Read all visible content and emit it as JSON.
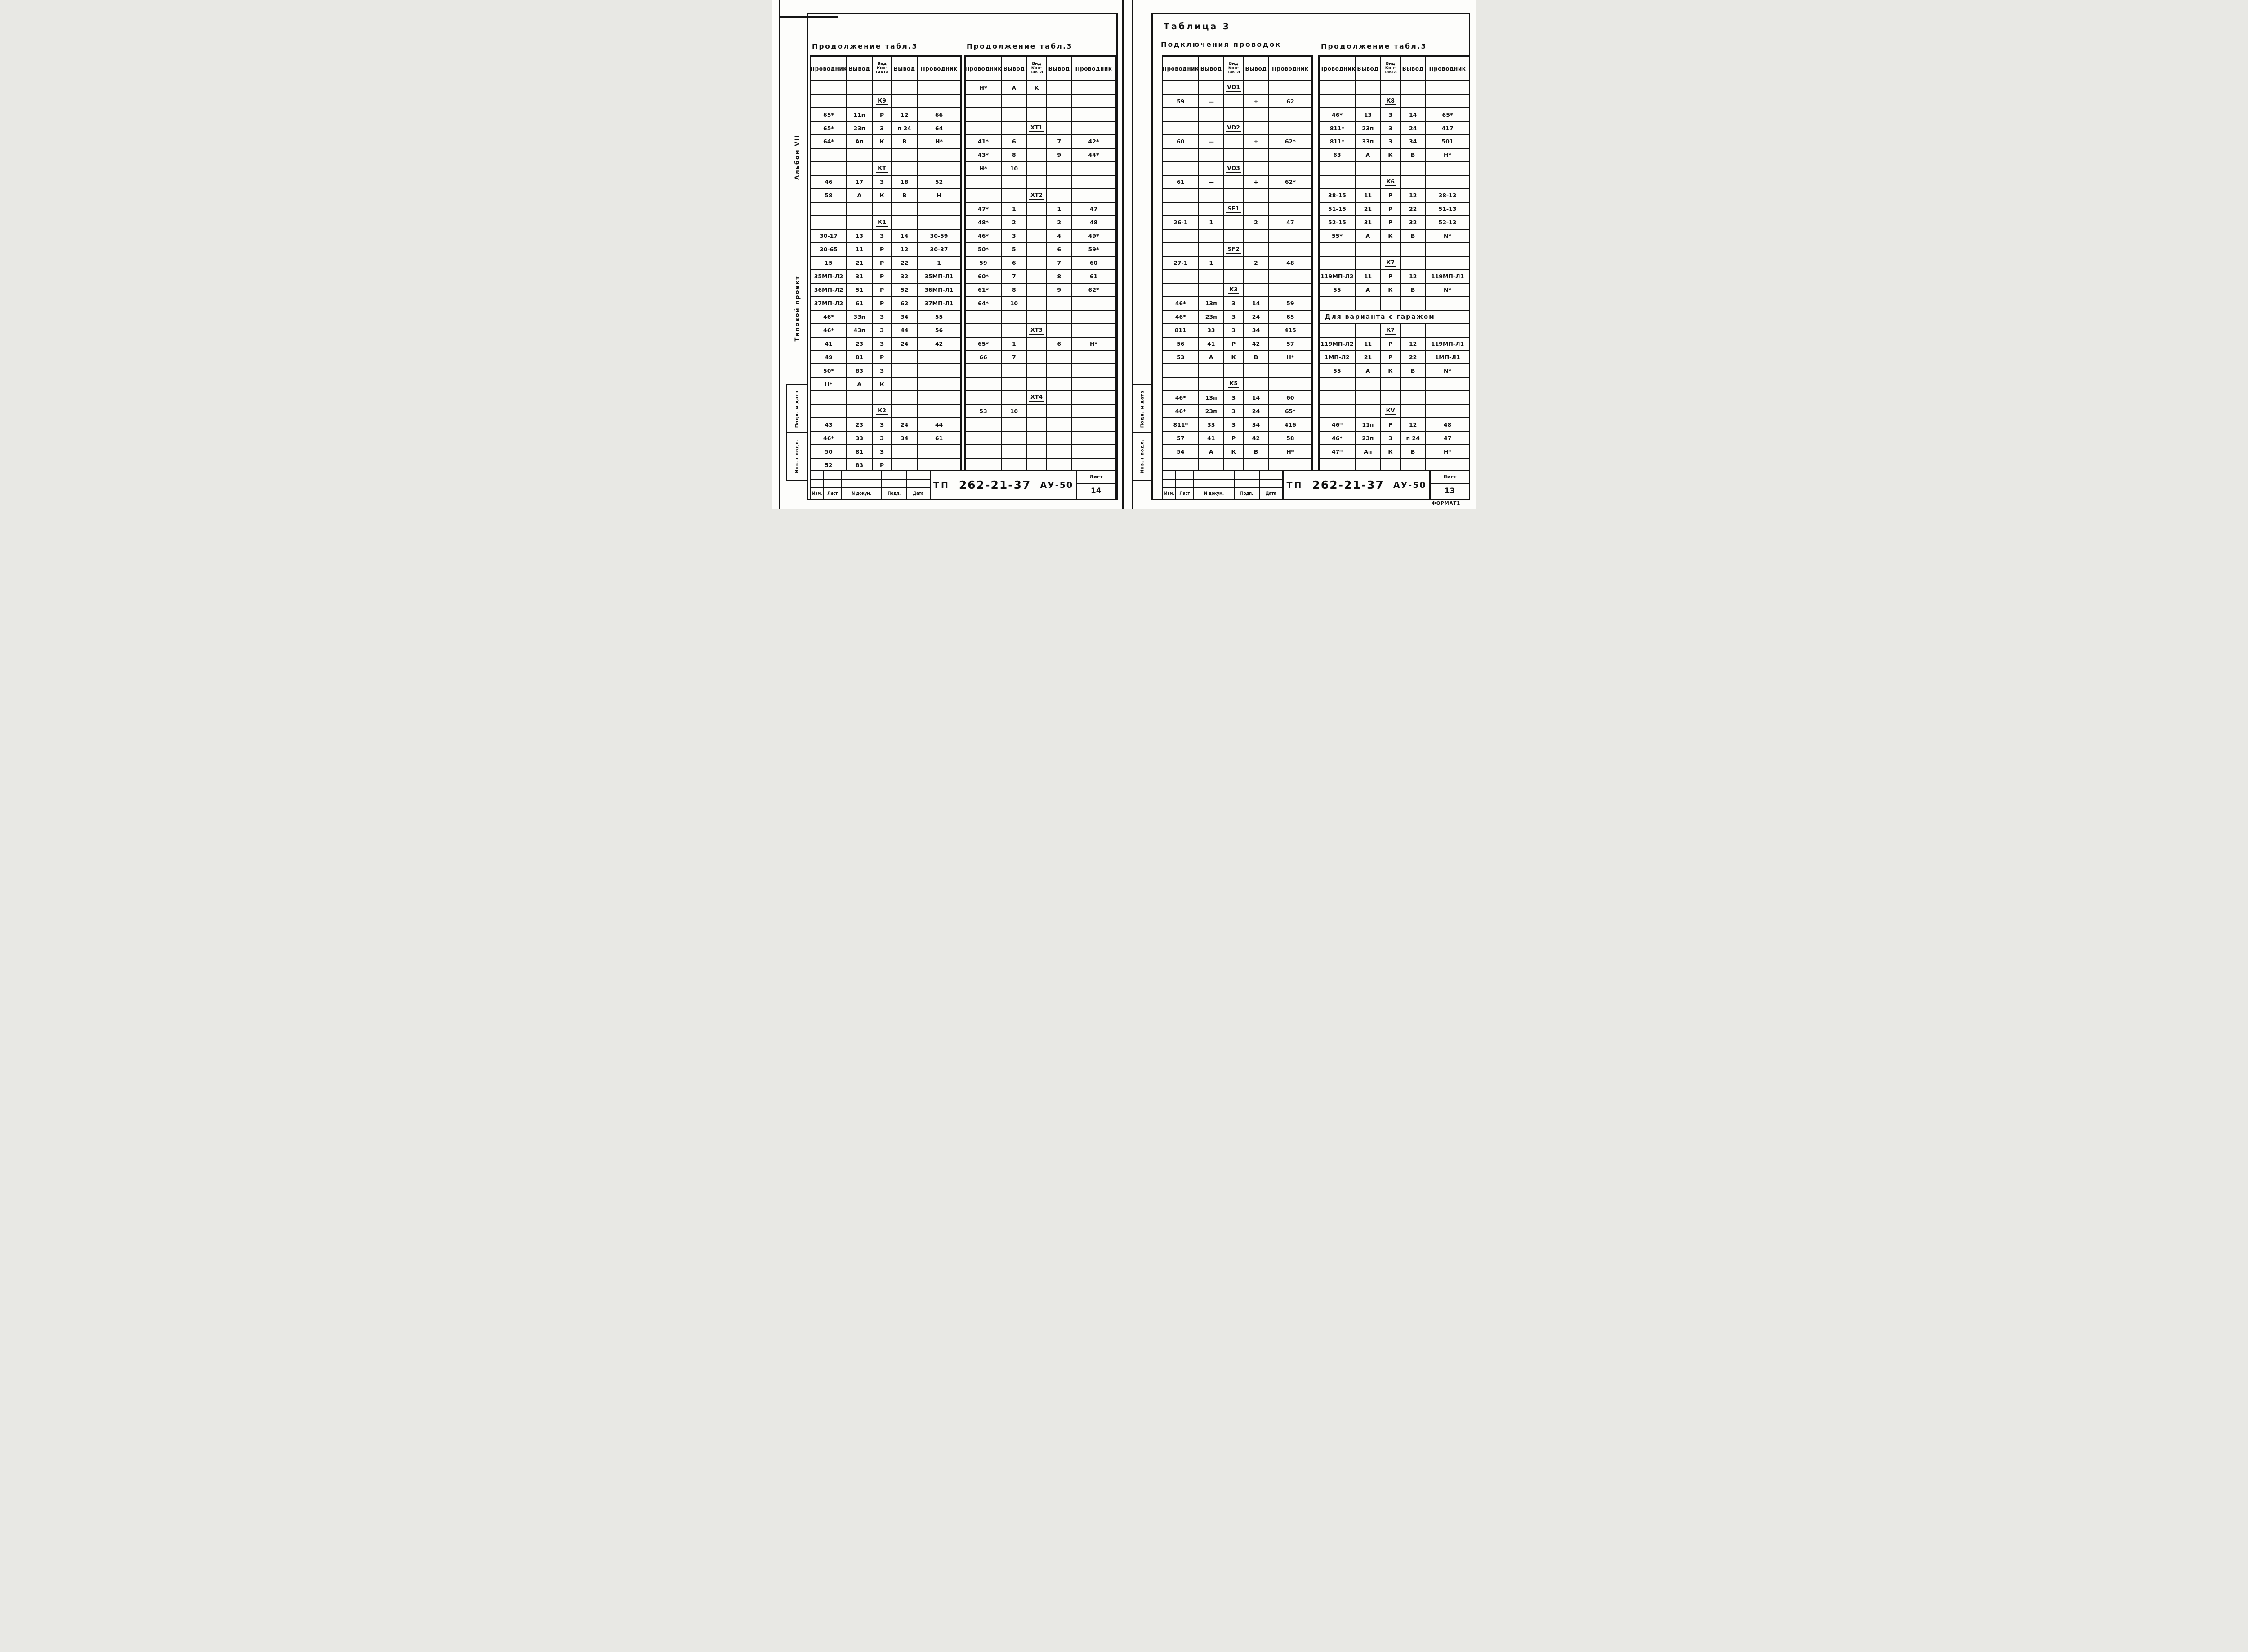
{
  "document": {
    "doc_prefix": "ТП",
    "doc_number": "262-21-37",
    "doc_code": "АУ-50",
    "sheet_word": "Лист",
    "format_label": "ФОРМАТ1"
  },
  "columns": [
    "Проводник",
    "Вывод",
    "Вид\nКон-\nтакта",
    "Вывод",
    "Проводник"
  ],
  "revision_labels": [
    "Изм.",
    "Лист",
    "N докум.",
    "Подп.",
    "Дата"
  ],
  "left_page": {
    "sheet_number": "14",
    "margin": {
      "album": "Альбом VII",
      "project": "Типовой проект",
      "podp": "Подп. и дата",
      "inv": "Инв.н подл."
    },
    "table1": {
      "title": "Продолжение табл.3",
      "rows": [
        {
          "t": "empty"
        },
        {
          "t": "section",
          "label": "К9"
        },
        {
          "t": "data",
          "c": [
            "65*",
            "11п",
            "Р",
            "12",
            "66"
          ]
        },
        {
          "t": "data",
          "c": [
            "65*",
            "23п",
            "З",
            "п 24",
            "64"
          ]
        },
        {
          "t": "data",
          "c": [
            "64*",
            "Ап",
            "К",
            "В",
            "Н*"
          ]
        },
        {
          "t": "empty"
        },
        {
          "t": "section",
          "label": "КТ"
        },
        {
          "t": "data",
          "c": [
            "46",
            "17",
            "З",
            "18",
            "52"
          ]
        },
        {
          "t": "data",
          "c": [
            "58",
            "А",
            "К",
            "В",
            "Н"
          ]
        },
        {
          "t": "empty"
        },
        {
          "t": "section",
          "label": "К1"
        },
        {
          "t": "data",
          "c": [
            "30-17",
            "13",
            "З",
            "14",
            "30-59"
          ]
        },
        {
          "t": "data",
          "c": [
            "30-65",
            "11",
            "Р",
            "12",
            "30-37"
          ]
        },
        {
          "t": "data",
          "c": [
            "15",
            "21",
            "Р",
            "22",
            "1"
          ]
        },
        {
          "t": "data",
          "c": [
            "35МП-Л2",
            "31",
            "Р",
            "32",
            "35МП-Л1"
          ]
        },
        {
          "t": "data",
          "c": [
            "36МП-Л2",
            "51",
            "Р",
            "52",
            "36МП-Л1"
          ]
        },
        {
          "t": "data",
          "c": [
            "37МП-Л2",
            "61",
            "Р",
            "62",
            "37МП-Л1"
          ]
        },
        {
          "t": "data",
          "c": [
            "46*",
            "33п",
            "З",
            "34",
            "55"
          ]
        },
        {
          "t": "data",
          "c": [
            "46*",
            "43п",
            "З",
            "44",
            "56"
          ]
        },
        {
          "t": "data",
          "c": [
            "41",
            "23",
            "З",
            "24",
            "42"
          ]
        },
        {
          "t": "data",
          "c": [
            "49",
            "81",
            "Р",
            "",
            ""
          ]
        },
        {
          "t": "data",
          "c": [
            "50*",
            "83",
            "З",
            "",
            ""
          ]
        },
        {
          "t": "data",
          "c": [
            "Н*",
            "А",
            "К",
            "",
            ""
          ]
        },
        {
          "t": "empty"
        },
        {
          "t": "section",
          "label": "К2"
        },
        {
          "t": "data",
          "c": [
            "43",
            "23",
            "З",
            "24",
            "44"
          ]
        },
        {
          "t": "data",
          "c": [
            "46*",
            "33",
            "З",
            "34",
            "61"
          ]
        },
        {
          "t": "data",
          "c": [
            "50",
            "81",
            "З",
            "",
            ""
          ]
        },
        {
          "t": "data",
          "c": [
            "52",
            "83",
            "Р",
            "",
            ""
          ]
        }
      ]
    },
    "table2": {
      "title": "Продолжение табл.3",
      "rows": [
        {
          "t": "data",
          "c": [
            "Н*",
            "А",
            "К",
            "",
            ""
          ]
        },
        {
          "t": "empty"
        },
        {
          "t": "empty"
        },
        {
          "t": "section",
          "label": "ХТ1"
        },
        {
          "t": "data",
          "c": [
            "41*",
            "6",
            "",
            "7",
            "42*"
          ]
        },
        {
          "t": "data",
          "c": [
            "43*",
            "8",
            "",
            "9",
            "44*"
          ]
        },
        {
          "t": "data",
          "c": [
            "Н*",
            "10",
            "",
            "",
            ""
          ]
        },
        {
          "t": "empty"
        },
        {
          "t": "section",
          "label": "ХТ2"
        },
        {
          "t": "data",
          "c": [
            "47*",
            "1",
            "",
            "1",
            "47"
          ]
        },
        {
          "t": "data",
          "c": [
            "48*",
            "2",
            "",
            "2",
            "48"
          ]
        },
        {
          "t": "data",
          "c": [
            "46*",
            "3",
            "",
            "4",
            "49*"
          ]
        },
        {
          "t": "data",
          "c": [
            "50*",
            "5",
            "",
            "6",
            "59*"
          ]
        },
        {
          "t": "data",
          "c": [
            "59",
            "6",
            "",
            "7",
            "60"
          ]
        },
        {
          "t": "data",
          "c": [
            "60*",
            "7",
            "",
            "8",
            "61"
          ]
        },
        {
          "t": "data",
          "c": [
            "61*",
            "8",
            "",
            "9",
            "62*"
          ]
        },
        {
          "t": "data",
          "c": [
            "64*",
            "10",
            "",
            "",
            ""
          ]
        },
        {
          "t": "empty"
        },
        {
          "t": "section",
          "label": "ХТ3"
        },
        {
          "t": "data",
          "c": [
            "65*",
            "1",
            "",
            "6",
            "Н*"
          ]
        },
        {
          "t": "data",
          "c": [
            "66",
            "7",
            "",
            "",
            ""
          ]
        },
        {
          "t": "empty"
        },
        {
          "t": "empty"
        },
        {
          "t": "section",
          "label": "ХТ4"
        },
        {
          "t": "data",
          "c": [
            "53",
            "10",
            "",
            "",
            ""
          ]
        },
        {
          "t": "empty"
        },
        {
          "t": "empty"
        },
        {
          "t": "empty"
        },
        {
          "t": "empty"
        }
      ]
    }
  },
  "right_page": {
    "sheet_number": "13",
    "header_title": "Таблица 3",
    "header_subtitle": "Подключения проводок",
    "margin": {
      "podp": "Подп. и дата",
      "inv": "Инв.н подл."
    },
    "table3": {
      "rows": [
        {
          "t": "section",
          "label": "VD1"
        },
        {
          "t": "data",
          "c": [
            "59",
            "—",
            "",
            "+",
            "62"
          ]
        },
        {
          "t": "empty"
        },
        {
          "t": "section",
          "label": "VD2"
        },
        {
          "t": "data",
          "c": [
            "60",
            "—",
            "",
            "+",
            "62*"
          ]
        },
        {
          "t": "empty"
        },
        {
          "t": "section",
          "label": "VD3"
        },
        {
          "t": "data",
          "c": [
            "61",
            "—",
            "",
            "+",
            "62*"
          ]
        },
        {
          "t": "empty"
        },
        {
          "t": "section",
          "label": "SF1"
        },
        {
          "t": "data",
          "c": [
            "26-1",
            "1",
            "",
            "2",
            "47"
          ]
        },
        {
          "t": "empty"
        },
        {
          "t": "section",
          "label": "SF2"
        },
        {
          "t": "data",
          "c": [
            "27-1",
            "1",
            "",
            "2",
            "48"
          ]
        },
        {
          "t": "empty"
        },
        {
          "t": "section",
          "label": "К3"
        },
        {
          "t": "data",
          "c": [
            "46*",
            "13п",
            "З",
            "14",
            "59"
          ]
        },
        {
          "t": "data",
          "c": [
            "46*",
            "23п",
            "З",
            "24",
            "65"
          ]
        },
        {
          "t": "data",
          "c": [
            "811",
            "33",
            "З",
            "34",
            "415"
          ]
        },
        {
          "t": "data",
          "c": [
            "56",
            "41",
            "Р",
            "42",
            "57"
          ]
        },
        {
          "t": "data",
          "c": [
            "53",
            "А",
            "К",
            "В",
            "Н*"
          ]
        },
        {
          "t": "empty"
        },
        {
          "t": "section",
          "label": "К5"
        },
        {
          "t": "data",
          "c": [
            "46*",
            "13п",
            "З",
            "14",
            "60"
          ]
        },
        {
          "t": "data",
          "c": [
            "46*",
            "23п",
            "З",
            "24",
            "65*"
          ]
        },
        {
          "t": "data",
          "c": [
            "811*",
            "33",
            "З",
            "34",
            "416"
          ]
        },
        {
          "t": "data",
          "c": [
            "57",
            "41",
            "Р",
            "42",
            "58"
          ]
        },
        {
          "t": "data",
          "c": [
            "54",
            "А",
            "К",
            "В",
            "Н*"
          ]
        },
        {
          "t": "empty"
        }
      ]
    },
    "table4": {
      "title": "Продолжение табл.3",
      "rows": [
        {
          "t": "empty"
        },
        {
          "t": "section",
          "label": "К8"
        },
        {
          "t": "data",
          "c": [
            "46*",
            "13",
            "З",
            "14",
            "65*"
          ]
        },
        {
          "t": "data",
          "c": [
            "811*",
            "23п",
            "З",
            "24",
            "417"
          ]
        },
        {
          "t": "data",
          "c": [
            "811*",
            "33п",
            "З",
            "34",
            "501"
          ]
        },
        {
          "t": "data",
          "c": [
            "63",
            "А",
            "К",
            "В",
            "Н*"
          ]
        },
        {
          "t": "empty"
        },
        {
          "t": "section",
          "label": "К6"
        },
        {
          "t": "data",
          "c": [
            "38-15",
            "11",
            "Р",
            "12",
            "38-13"
          ]
        },
        {
          "t": "data",
          "c": [
            "51-15",
            "21",
            "Р",
            "22",
            "51-13"
          ]
        },
        {
          "t": "data",
          "c": [
            "52-15",
            "31",
            "Р",
            "32",
            "52-13"
          ]
        },
        {
          "t": "data",
          "c": [
            "55*",
            "А",
            "К",
            "В",
            "N*"
          ]
        },
        {
          "t": "empty"
        },
        {
          "t": "section",
          "label": "К7"
        },
        {
          "t": "data",
          "c": [
            "119МП-Л2",
            "11",
            "Р",
            "12",
            "119МП-Л1"
          ]
        },
        {
          "t": "data",
          "c": [
            "55",
            "А",
            "К",
            "В",
            "N*"
          ]
        },
        {
          "t": "empty"
        },
        {
          "t": "text",
          "label": "Для варианта с гаражом"
        },
        {
          "t": "section",
          "label": "К7"
        },
        {
          "t": "data",
          "c": [
            "119МП-Л2",
            "11",
            "Р",
            "12",
            "119МП-Л1"
          ]
        },
        {
          "t": "data",
          "c": [
            "1МП-Л2",
            "21",
            "Р",
            "22",
            "1МП-Л1"
          ]
        },
        {
          "t": "data",
          "c": [
            "55",
            "А",
            "К",
            "В",
            "N*"
          ]
        },
        {
          "t": "empty"
        },
        {
          "t": "empty"
        },
        {
          "t": "section",
          "label": "КV"
        },
        {
          "t": "data",
          "c": [
            "46*",
            "11п",
            "Р",
            "12",
            "48"
          ]
        },
        {
          "t": "data",
          "c": [
            "46*",
            "23п",
            "З",
            "п 24",
            "47"
          ]
        },
        {
          "t": "data",
          "c": [
            "47*",
            "Ап",
            "К",
            "В",
            "Н*"
          ]
        },
        {
          "t": "empty"
        }
      ]
    }
  }
}
